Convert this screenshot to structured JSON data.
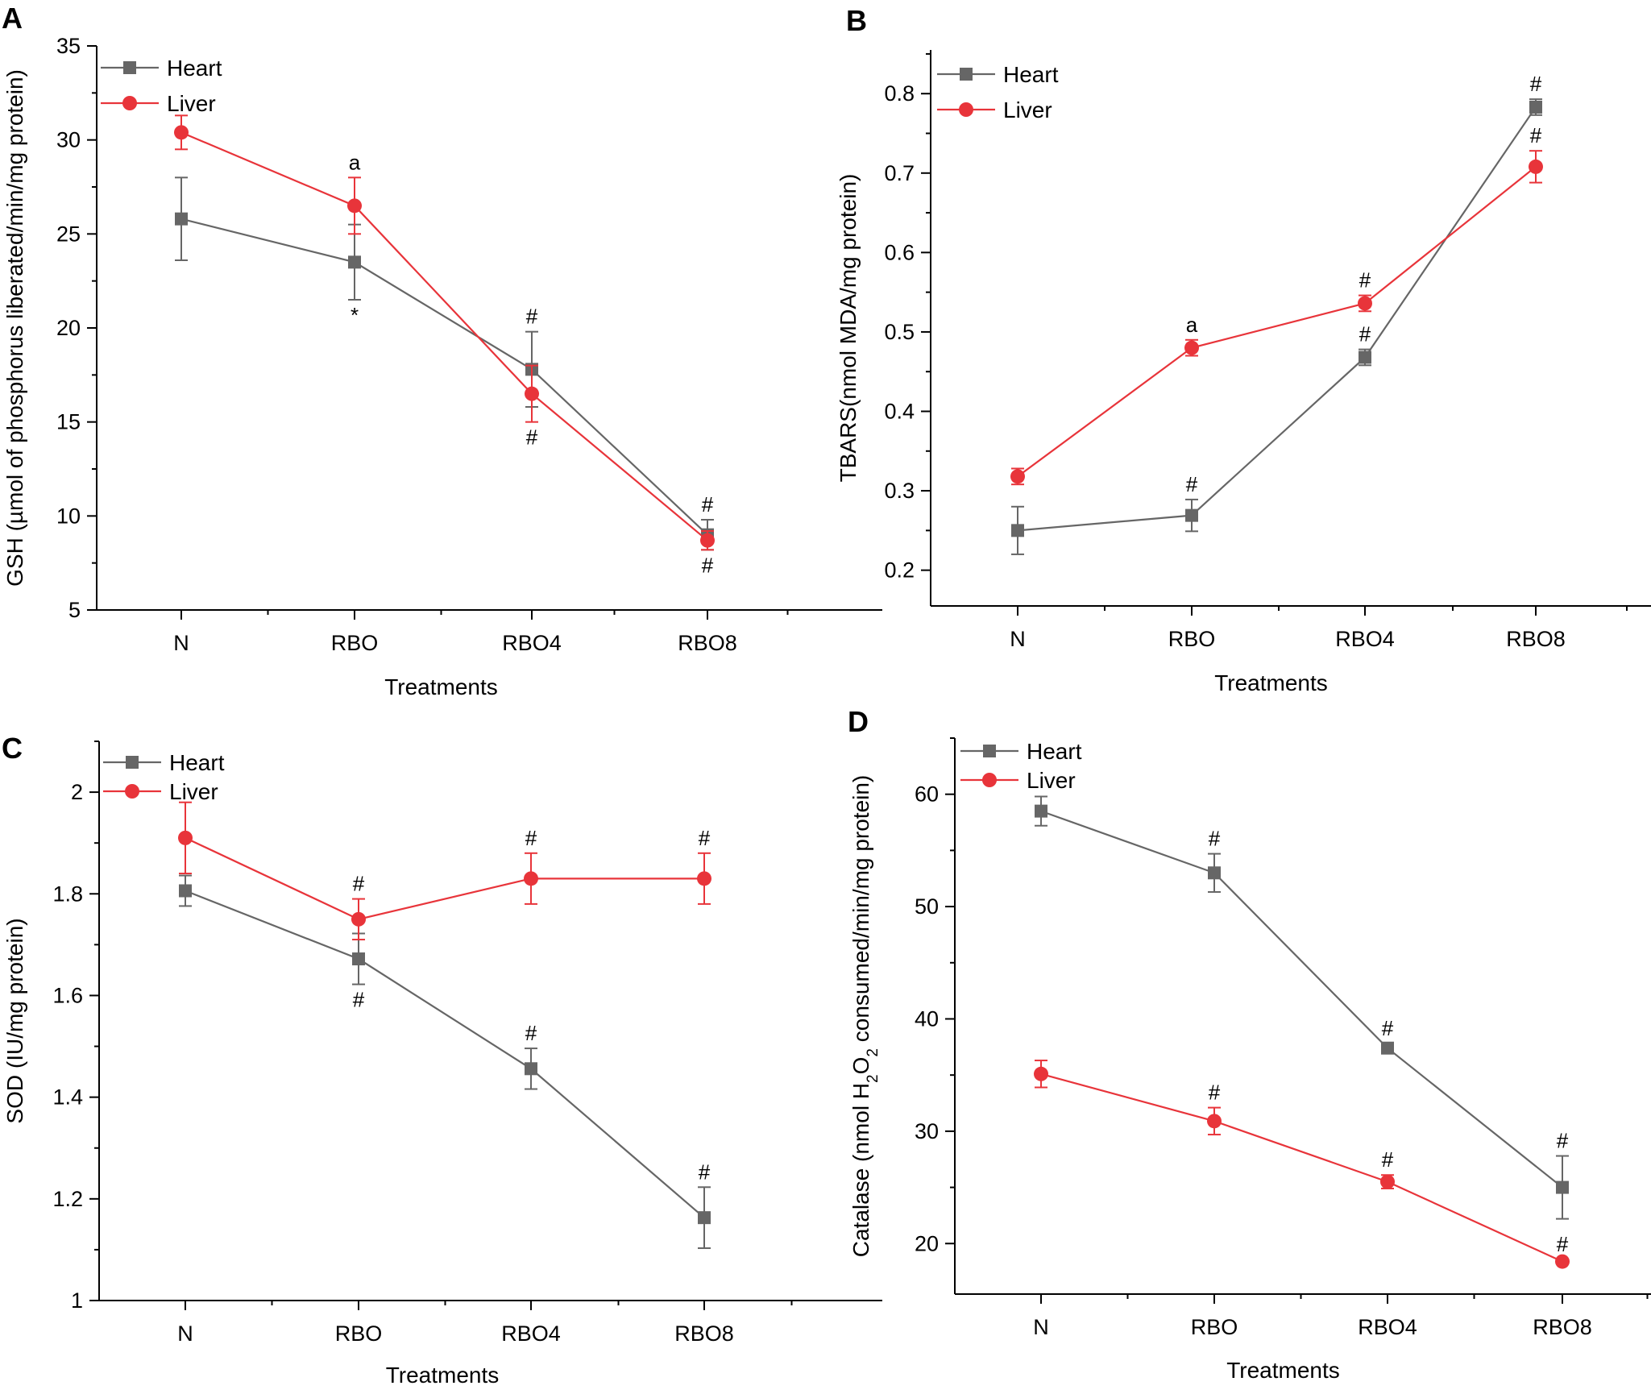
{
  "colors": {
    "heart": "#666666",
    "liver": "#e8343a",
    "axis": "#000000"
  },
  "chart_data": [
    {
      "type": "line",
      "panel": "A",
      "title": "",
      "xlabel": "Treatments",
      "ylabel": "GSH (µmol of phosphorus liberated/min/mg protein)",
      "ylabel_parts": [
        {
          "t": "GSH (µmol of phosphorus liberated/min/mg protein)"
        }
      ],
      "categories": [
        "N",
        "RBO",
        "RBO4",
        "RBO8"
      ],
      "ylim": [
        5,
        35
      ],
      "yticks": [
        5,
        10,
        15,
        20,
        25,
        30,
        35
      ],
      "legend": [
        "Heart",
        "Liver"
      ],
      "series": [
        {
          "name": "Heart",
          "marker": "square",
          "values": [
            25.8,
            23.5,
            17.8,
            9.0
          ],
          "errors": [
            2.2,
            2.0,
            2.0,
            0.8
          ],
          "annotations": [
            {
              "i": 1,
              "text": "*",
              "pos": "below"
            },
            {
              "i": 2,
              "text": "#",
              "pos": "above"
            },
            {
              "i": 3,
              "text": "#",
              "pos": "above"
            }
          ]
        },
        {
          "name": "Liver",
          "marker": "circle",
          "values": [
            30.4,
            26.5,
            16.5,
            8.7
          ],
          "errors": [
            0.9,
            1.5,
            1.5,
            0.5
          ],
          "annotations": [
            {
              "i": 1,
              "text": "a",
              "pos": "above"
            },
            {
              "i": 2,
              "text": "#",
              "pos": "below"
            },
            {
              "i": 3,
              "text": "#",
              "pos": "below"
            }
          ]
        }
      ]
    },
    {
      "type": "line",
      "panel": "B",
      "title": "",
      "xlabel": "Treatments",
      "ylabel": "TBARS(nmol MDA/mg protein)",
      "ylabel_parts": [
        {
          "t": "TBARS(nmol MDA/mg protein)"
        }
      ],
      "categories": [
        "N",
        "RBO",
        "RBO4",
        "RBO8"
      ],
      "ylim": [
        0.155,
        0.855
      ],
      "yticks": [
        0.2,
        0.3,
        0.4,
        0.5,
        0.6,
        0.7,
        0.8
      ],
      "legend": [
        "Heart",
        "Liver"
      ],
      "series": [
        {
          "name": "Heart",
          "marker": "square",
          "values": [
            0.25,
            0.269,
            0.468,
            0.783
          ],
          "errors": [
            0.03,
            0.02,
            0.01,
            0.01
          ],
          "annotations": [
            {
              "i": 1,
              "text": "#",
              "pos": "above"
            },
            {
              "i": 2,
              "text": "#",
              "pos": "above"
            },
            {
              "i": 3,
              "text": "#",
              "pos": "above"
            }
          ]
        },
        {
          "name": "Liver",
          "marker": "circle",
          "values": [
            0.318,
            0.48,
            0.536,
            0.708
          ],
          "errors": [
            0.01,
            0.01,
            0.01,
            0.02
          ],
          "annotations": [
            {
              "i": 1,
              "text": "a",
              "pos": "above"
            },
            {
              "i": 2,
              "text": "#",
              "pos": "above"
            },
            {
              "i": 3,
              "text": "#",
              "pos": "above"
            }
          ]
        }
      ]
    },
    {
      "type": "line",
      "panel": "C",
      "title": "",
      "xlabel": "Treatments",
      "ylabel": "SOD (IU/mg protein)",
      "ylabel_parts": [
        {
          "t": "SOD (IU/mg protein)"
        }
      ],
      "categories": [
        "N",
        "RBO",
        "RBO4",
        "RBO8"
      ],
      "ylim": [
        1.0,
        2.1
      ],
      "yticks": [
        1.0,
        1.2,
        1.4,
        1.6,
        1.8,
        2.0
      ],
      "legend": [
        "Heart",
        "Liver"
      ],
      "series": [
        {
          "name": "Heart",
          "marker": "square",
          "values": [
            1.806,
            1.672,
            1.456,
            1.163
          ],
          "errors": [
            0.03,
            0.05,
            0.04,
            0.06
          ],
          "annotations": [
            {
              "i": 1,
              "text": "#",
              "pos": "below"
            },
            {
              "i": 2,
              "text": "#",
              "pos": "above"
            },
            {
              "i": 3,
              "text": "#",
              "pos": "above"
            }
          ]
        },
        {
          "name": "Liver",
          "marker": "circle",
          "values": [
            1.91,
            1.75,
            1.83,
            1.83
          ],
          "errors": [
            0.07,
            0.04,
            0.05,
            0.05
          ],
          "annotations": [
            {
              "i": 1,
              "text": "#",
              "pos": "above"
            },
            {
              "i": 2,
              "text": "#",
              "pos": "above"
            },
            {
              "i": 3,
              "text": "#",
              "pos": "above"
            }
          ]
        }
      ]
    },
    {
      "type": "line",
      "panel": "D",
      "title": "",
      "xlabel": "Treatments",
      "ylabel": "Catalase (nmol H2O2 consumed/min/mg protein)",
      "ylabel_parts": [
        {
          "t": "Catalase (nmol H"
        },
        {
          "t": "2",
          "sub": true
        },
        {
          "t": "O"
        },
        {
          "t": "2",
          "sub": true
        },
        {
          "t": " consumed/min/mg protein)"
        }
      ],
      "categories": [
        "N",
        "RBO",
        "RBO4",
        "RBO8"
      ],
      "ylim": [
        15.5,
        65
      ],
      "yticks": [
        20,
        30,
        40,
        50,
        60
      ],
      "legend": [
        "Heart",
        "Liver"
      ],
      "series": [
        {
          "name": "Heart",
          "marker": "square",
          "values": [
            58.5,
            53.0,
            37.4,
            25.0
          ],
          "errors": [
            1.3,
            1.7,
            0.4,
            2.8
          ],
          "annotations": [
            {
              "i": 1,
              "text": "#",
              "pos": "above"
            },
            {
              "i": 2,
              "text": "#",
              "pos": "above"
            },
            {
              "i": 3,
              "text": "#",
              "pos": "above"
            }
          ]
        },
        {
          "name": "Liver",
          "marker": "circle",
          "values": [
            35.1,
            30.9,
            25.5,
            18.4
          ],
          "errors": [
            1.2,
            1.2,
            0.6,
            0.2
          ],
          "annotations": [
            {
              "i": 1,
              "text": "#",
              "pos": "above"
            },
            {
              "i": 2,
              "text": "#",
              "pos": "above"
            },
            {
              "i": 3,
              "text": "#",
              "pos": "above"
            }
          ]
        }
      ]
    }
  ]
}
